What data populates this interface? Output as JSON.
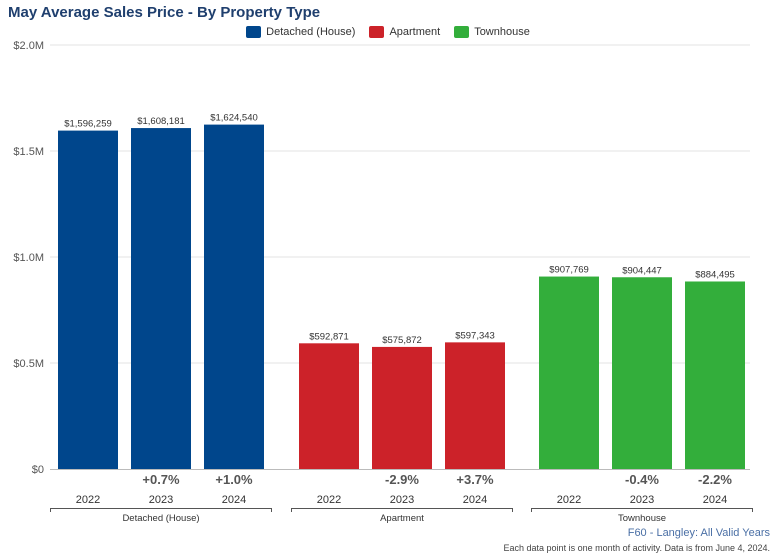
{
  "chart_data": {
    "type": "bar",
    "title": "May Average Sales Price - By Property Type",
    "y_ticks": [
      "$0",
      "$0.5M",
      "$1.0M",
      "$1.5M",
      "$2.0M"
    ],
    "ylim": [
      0,
      2000000
    ],
    "grid": true,
    "legend_position": "top-center",
    "years": [
      "2022",
      "2023",
      "2024"
    ],
    "groups": [
      {
        "name": "Detached (House)",
        "color": "#00468c",
        "values": [
          1596259,
          1608181,
          1624540
        ],
        "value_labels": [
          "$1,596,259",
          "$1,608,181",
          "$1,624,540"
        ],
        "changes": [
          "",
          "+0.7%",
          "+1.0%"
        ]
      },
      {
        "name": "Apartment",
        "color": "#cc2229",
        "values": [
          592871,
          575872,
          597343
        ],
        "value_labels": [
          "$592,871",
          "$575,872",
          "$597,343"
        ],
        "changes": [
          "",
          "-2.9%",
          "+3.7%"
        ]
      },
      {
        "name": "Townhouse",
        "color": "#33ae3b",
        "values": [
          907769,
          904447,
          884495
        ],
        "value_labels": [
          "$907,769",
          "$904,447",
          "$884,495"
        ],
        "changes": [
          "",
          "-0.4%",
          "-2.2%"
        ]
      }
    ]
  },
  "footer": {
    "source": "F60 - Langley: All Valid Years",
    "note": "Each data point is one month of activity. Data is from June 4, 2024."
  }
}
